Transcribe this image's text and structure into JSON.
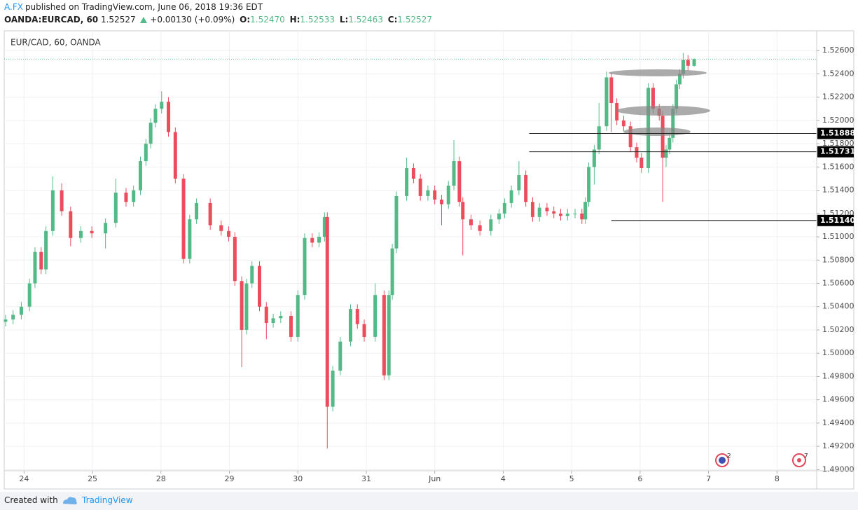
{
  "header": {
    "author": "A.FX",
    "published": "published on TradingView.com, June 06, 2018 19:36 EDT",
    "symbol": "OANDA:EURCAD, 60",
    "last": "1.52527",
    "change": "+0.00130 (+0.09%)",
    "o_label": "O:",
    "o": "1.52470",
    "h_label": "H:",
    "h": "1.52533",
    "l_label": "L:",
    "l": "1.52463",
    "c_label": "C:",
    "c": "1.52527"
  },
  "footer": {
    "created": "Created with",
    "brand": "TradingView"
  },
  "chart_data": {
    "type": "candlestick",
    "title": "EUR/CAD, 60, OANDA",
    "up_color": "#53b987",
    "down_color": "#eb4d5c",
    "grid": true,
    "xlim": [
      -0.29,
      11.58
    ],
    "xticks": [
      {
        "value": 0,
        "label": "24"
      },
      {
        "value": 1,
        "label": "25"
      },
      {
        "value": 2,
        "label": "28"
      },
      {
        "value": 3,
        "label": "29"
      },
      {
        "value": 4,
        "label": "30"
      },
      {
        "value": 5,
        "label": "31"
      },
      {
        "value": 6,
        "label": "Jun"
      },
      {
        "value": 7,
        "label": "4"
      },
      {
        "value": 8,
        "label": "5"
      },
      {
        "value": 9,
        "label": "6"
      },
      {
        "value": 10,
        "label": "7"
      },
      {
        "value": 11,
        "label": "8"
      }
    ],
    "ylim": [
      1.4899,
      1.5277
    ],
    "yticks": [
      {
        "value": 1.49,
        "label": "1.49000"
      },
      {
        "value": 1.492,
        "label": "1.49200"
      },
      {
        "value": 1.494,
        "label": "1.49400"
      },
      {
        "value": 1.496,
        "label": "1.49600"
      },
      {
        "value": 1.498,
        "label": "1.49800"
      },
      {
        "value": 1.5,
        "label": "1.50000"
      },
      {
        "value": 1.502,
        "label": "1.50200"
      },
      {
        "value": 1.504,
        "label": "1.50400"
      },
      {
        "value": 1.506,
        "label": "1.50600"
      },
      {
        "value": 1.508,
        "label": "1.50800"
      },
      {
        "value": 1.51,
        "label": "1.51000"
      },
      {
        "value": 1.512,
        "label": "1.51200"
      },
      {
        "value": 1.514,
        "label": "1.51400"
      },
      {
        "value": 1.516,
        "label": "1.51600"
      },
      {
        "value": 1.518,
        "label": "1.51800"
      },
      {
        "value": 1.52,
        "label": "1.52000"
      },
      {
        "value": 1.522,
        "label": "1.52200"
      },
      {
        "value": 1.524,
        "label": "1.52400"
      },
      {
        "value": 1.526,
        "label": "1.52600"
      }
    ],
    "hlines": [
      {
        "value": 1.51888,
        "start_x": 7.38
      },
      {
        "value": 1.51731,
        "start_x": 7.38
      },
      {
        "value": {
          "value": 1.5114,
          "label": "1.51140"
        },
        "start_x": 8.58
      }
    ],
    "x": [
      -0.27,
      -0.16,
      -0.04,
      0.08,
      0.16,
      0.25,
      0.32,
      0.42,
      0.55,
      0.68,
      0.83,
      0.99,
      1.19,
      1.34,
      1.49,
      1.6,
      1.7,
      1.78,
      1.85,
      1.92,
      2.01,
      2.11,
      2.21,
      2.33,
      2.42,
      2.52,
      2.72,
      2.88,
      2.99,
      3.08,
      3.18,
      3.25,
      3.33,
      3.44,
      3.54,
      3.64,
      3.75,
      3.9,
      4.0,
      4.1,
      4.21,
      4.31,
      4.39,
      4.43,
      4.51,
      4.62,
      4.77,
      4.87,
      4.97,
      5.13,
      5.26,
      5.33,
      5.38,
      5.44,
      5.59,
      5.69,
      5.79,
      5.9,
      6.0,
      6.1,
      6.2,
      6.28,
      6.36,
      6.41,
      6.53,
      6.66,
      6.82,
      6.94,
      7.02,
      7.12,
      7.23,
      7.33,
      7.43,
      7.53,
      7.64,
      7.74,
      7.84,
      7.94,
      8.05,
      8.15,
      8.2,
      8.25,
      8.33,
      8.4,
      8.51,
      8.58,
      8.66,
      8.76,
      8.86,
      8.95,
      9.02,
      9.12,
      9.19,
      9.28,
      9.33,
      9.38,
      9.43,
      9.48,
      9.53,
      9.58,
      9.63,
      9.7,
      9.79
    ],
    "open": [
      1.5027,
      1.5029,
      1.5033,
      1.504,
      1.506,
      1.5087,
      1.5072,
      1.5105,
      1.514,
      1.5122,
      1.5099,
      1.5105,
      1.5103,
      1.5112,
      1.5138,
      1.513,
      1.514,
      1.5165,
      1.518,
      1.5198,
      1.521,
      1.5216,
      1.519,
      1.515,
      1.5081,
      1.5115,
      1.5129,
      1.511,
      1.5105,
      1.51,
      1.5062,
      1.502,
      1.506,
      1.5075,
      1.504,
      1.5026,
      1.503,
      1.5032,
      1.5014,
      1.505,
      1.5099,
      1.5095,
      1.51,
      1.5117,
      1.4954,
      1.4985,
      1.501,
      1.5038,
      1.5025,
      1.5014,
      1.505,
      1.4981,
      1.505,
      1.509,
      1.5135,
      1.5159,
      1.515,
      1.5135,
      1.514,
      1.5132,
      1.5128,
      1.5144,
      1.5165,
      1.513,
      1.5115,
      1.511,
      1.5105,
      1.5115,
      1.512,
      1.5129,
      1.514,
      1.5153,
      1.513,
      1.5117,
      1.5125,
      1.5122,
      1.512,
      1.5118,
      1.512,
      1.512,
      1.5115,
      1.513,
      1.516,
      1.5175,
      1.5195,
      1.5237,
      1.5215,
      1.52,
      1.5195,
      1.5177,
      1.5168,
      1.5159,
      1.5228,
      1.521,
      1.5204,
      1.5168,
      1.5175,
      1.5185,
      1.521,
      1.5231,
      1.524,
      1.5252,
      1.5247
    ],
    "high": [
      1.5033,
      1.5037,
      1.5044,
      1.5064,
      1.5091,
      1.5091,
      1.5109,
      1.5152,
      1.5146,
      1.5126,
      1.5109,
      1.5109,
      1.5116,
      1.515,
      1.5142,
      1.5144,
      1.5169,
      1.5184,
      1.5202,
      1.5214,
      1.5225,
      1.522,
      1.5194,
      1.5154,
      1.5119,
      1.5133,
      1.5133,
      1.5114,
      1.5109,
      1.5104,
      1.5066,
      1.5064,
      1.5079,
      1.5079,
      1.5044,
      1.5034,
      1.5036,
      1.5036,
      1.5054,
      1.5103,
      1.5103,
      1.5104,
      1.5121,
      1.5121,
      1.4989,
      1.5014,
      1.5042,
      1.5042,
      1.5029,
      1.506,
      1.5054,
      1.5054,
      1.5094,
      1.5139,
      1.5168,
      1.5163,
      1.5154,
      1.5144,
      1.5144,
      1.5136,
      1.5148,
      1.5183,
      1.5169,
      1.5134,
      1.5119,
      1.5114,
      1.5119,
      1.5124,
      1.5133,
      1.5144,
      1.5165,
      1.5157,
      1.5134,
      1.5129,
      1.5129,
      1.5126,
      1.5124,
      1.5124,
      1.5124,
      1.5124,
      1.5134,
      1.5164,
      1.5179,
      1.5215,
      1.5242,
      1.5241,
      1.5219,
      1.5204,
      1.5199,
      1.5181,
      1.5172,
      1.5232,
      1.5232,
      1.5214,
      1.5208,
      1.5179,
      1.5189,
      1.5214,
      1.5235,
      1.5244,
      1.5258,
      1.5256,
      1.52533
    ],
    "low": [
      1.5023,
      1.5025,
      1.5029,
      1.5036,
      1.5056,
      1.5068,
      1.5068,
      1.5101,
      1.5118,
      1.5092,
      1.5095,
      1.5099,
      1.509,
      1.5108,
      1.5126,
      1.5126,
      1.5136,
      1.5161,
      1.5176,
      1.5194,
      1.5206,
      1.5186,
      1.5146,
      1.5077,
      1.5077,
      1.5111,
      1.5106,
      1.5101,
      1.5096,
      1.5058,
      1.4988,
      1.5016,
      1.5056,
      1.5036,
      1.5012,
      1.5022,
      1.5026,
      1.501,
      1.501,
      1.5046,
      1.5091,
      1.5091,
      1.5096,
      1.4918,
      1.495,
      1.4981,
      1.5006,
      1.5021,
      1.501,
      1.501,
      1.4977,
      1.4977,
      1.5046,
      1.5086,
      1.5131,
      1.5146,
      1.5131,
      1.5131,
      1.5128,
      1.511,
      1.5124,
      1.514,
      1.5126,
      1.5084,
      1.5106,
      1.5101,
      1.5101,
      1.5111,
      1.5116,
      1.5125,
      1.5136,
      1.5126,
      1.5113,
      1.5113,
      1.5118,
      1.5116,
      1.5114,
      1.5114,
      1.5116,
      1.5111,
      1.5111,
      1.5126,
      1.5145,
      1.5171,
      1.5191,
      1.519,
      1.5196,
      1.5191,
      1.5173,
      1.5164,
      1.5155,
      1.5155,
      1.5206,
      1.52,
      1.513,
      1.516,
      1.5171,
      1.5181,
      1.5206,
      1.5227,
      1.5236,
      1.5243,
      1.52463
    ],
    "close": [
      1.5029,
      1.5033,
      1.504,
      1.506,
      1.5087,
      1.5072,
      1.5105,
      1.514,
      1.5122,
      1.5099,
      1.5105,
      1.5103,
      1.5112,
      1.5138,
      1.513,
      1.514,
      1.5165,
      1.518,
      1.5198,
      1.521,
      1.5216,
      1.519,
      1.515,
      1.5081,
      1.5115,
      1.5129,
      1.511,
      1.5105,
      1.51,
      1.5062,
      1.502,
      1.506,
      1.5075,
      1.504,
      1.5026,
      1.503,
      1.5032,
      1.5014,
      1.505,
      1.5099,
      1.5095,
      1.51,
      1.5117,
      1.4954,
      1.4985,
      1.501,
      1.5038,
      1.5025,
      1.5014,
      1.505,
      1.4981,
      1.505,
      1.509,
      1.5135,
      1.5159,
      1.515,
      1.5135,
      1.514,
      1.5132,
      1.5128,
      1.5144,
      1.5165,
      1.513,
      1.5115,
      1.511,
      1.5105,
      1.5115,
      1.512,
      1.5129,
      1.514,
      1.5153,
      1.513,
      1.5117,
      1.5125,
      1.5122,
      1.512,
      1.5118,
      1.512,
      1.512,
      1.5115,
      1.513,
      1.516,
      1.5175,
      1.5195,
      1.5237,
      1.5215,
      1.52,
      1.5195,
      1.5177,
      1.5168,
      1.5159,
      1.5228,
      1.521,
      1.5204,
      1.5168,
      1.5175,
      1.5185,
      1.521,
      1.5231,
      1.524,
      1.5252,
      1.5247,
      1.52527
    ],
    "events": [
      "2",
      "7"
    ]
  }
}
